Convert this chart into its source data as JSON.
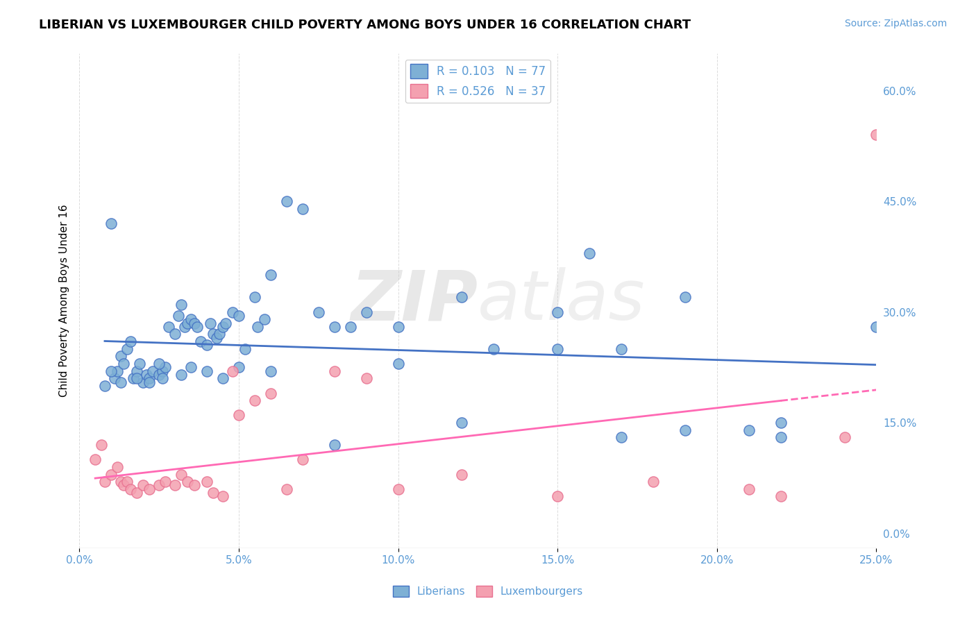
{
  "title": "LIBERIAN VS LUXEMBOURGER CHILD POVERTY AMONG BOYS UNDER 16 CORRELATION CHART",
  "source": "Source: ZipAtlas.com",
  "xlabel": "",
  "ylabel": "Child Poverty Among Boys Under 16",
  "xlim": [
    0.0,
    0.25
  ],
  "ylim": [
    -0.02,
    0.65
  ],
  "xticks": [
    0.0,
    0.05,
    0.1,
    0.15,
    0.2,
    0.25
  ],
  "yticks_right": [
    0.0,
    0.15,
    0.3,
    0.45,
    0.6
  ],
  "liberian_R": 0.103,
  "liberian_N": 77,
  "luxembourger_R": 0.526,
  "luxembourger_N": 37,
  "liberian_color": "#7EB0D5",
  "luxembourger_color": "#F4A0B0",
  "liberian_line_color": "#4472C4",
  "luxembourger_line_color": "#FF69B4",
  "watermark_zip": "ZIP",
  "watermark_atlas": "atlas",
  "liberian_x": [
    0.008,
    0.01,
    0.011,
    0.012,
    0.013,
    0.014,
    0.015,
    0.016,
    0.017,
    0.018,
    0.019,
    0.02,
    0.021,
    0.022,
    0.023,
    0.025,
    0.026,
    0.027,
    0.028,
    0.03,
    0.031,
    0.032,
    0.033,
    0.034,
    0.035,
    0.036,
    0.037,
    0.038,
    0.04,
    0.041,
    0.042,
    0.043,
    0.044,
    0.045,
    0.046,
    0.048,
    0.05,
    0.052,
    0.055,
    0.056,
    0.058,
    0.06,
    0.065,
    0.07,
    0.075,
    0.08,
    0.085,
    0.09,
    0.1,
    0.12,
    0.13,
    0.15,
    0.16,
    0.17,
    0.19,
    0.21,
    0.22,
    0.25,
    0.025,
    0.026,
    0.032,
    0.035,
    0.04,
    0.045,
    0.05,
    0.06,
    0.08,
    0.1,
    0.12,
    0.15,
    0.17,
    0.19,
    0.22,
    0.01,
    0.013,
    0.018,
    0.022
  ],
  "liberian_y": [
    0.2,
    0.42,
    0.21,
    0.22,
    0.24,
    0.23,
    0.25,
    0.26,
    0.21,
    0.22,
    0.23,
    0.205,
    0.215,
    0.21,
    0.22,
    0.215,
    0.22,
    0.225,
    0.28,
    0.27,
    0.295,
    0.31,
    0.28,
    0.285,
    0.29,
    0.285,
    0.28,
    0.26,
    0.255,
    0.285,
    0.27,
    0.265,
    0.27,
    0.28,
    0.285,
    0.3,
    0.295,
    0.25,
    0.32,
    0.28,
    0.29,
    0.35,
    0.45,
    0.44,
    0.3,
    0.28,
    0.28,
    0.3,
    0.28,
    0.32,
    0.25,
    0.3,
    0.38,
    0.25,
    0.32,
    0.14,
    0.15,
    0.28,
    0.23,
    0.21,
    0.215,
    0.225,
    0.22,
    0.21,
    0.225,
    0.22,
    0.12,
    0.23,
    0.15,
    0.25,
    0.13,
    0.14,
    0.13,
    0.22,
    0.205,
    0.21,
    0.205
  ],
  "luxembourger_x": [
    0.005,
    0.007,
    0.008,
    0.01,
    0.012,
    0.013,
    0.014,
    0.015,
    0.016,
    0.018,
    0.02,
    0.022,
    0.025,
    0.027,
    0.03,
    0.032,
    0.034,
    0.036,
    0.04,
    0.042,
    0.045,
    0.048,
    0.05,
    0.055,
    0.06,
    0.065,
    0.07,
    0.08,
    0.09,
    0.1,
    0.12,
    0.15,
    0.18,
    0.21,
    0.22,
    0.24,
    0.25
  ],
  "luxembourger_y": [
    0.1,
    0.12,
    0.07,
    0.08,
    0.09,
    0.07,
    0.065,
    0.07,
    0.06,
    0.055,
    0.065,
    0.06,
    0.065,
    0.07,
    0.065,
    0.08,
    0.07,
    0.065,
    0.07,
    0.055,
    0.05,
    0.22,
    0.16,
    0.18,
    0.19,
    0.06,
    0.1,
    0.22,
    0.21,
    0.06,
    0.08,
    0.05,
    0.07,
    0.06,
    0.05,
    0.13,
    0.54
  ]
}
